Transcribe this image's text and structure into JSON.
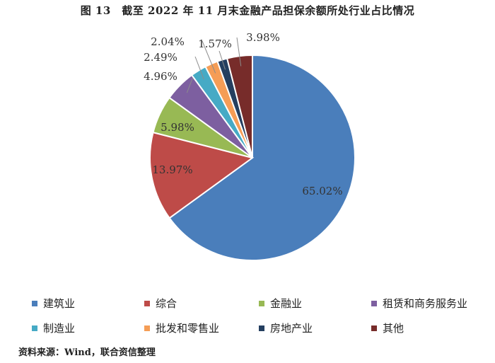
{
  "figure": {
    "title": "图 13　截至 2022 年 11 月末金融产品担保余额所处行业占比情况",
    "source": "资料来源：Wind，联合资信整理"
  },
  "chart_data": {
    "type": "pie",
    "title": "图 13　截至 2022 年 11 月末金融产品担保余额所处行业占比情况",
    "slices": [
      {
        "label": "建筑业",
        "value": 65.02,
        "value_label": "65.02%",
        "color": "#4A7EBB"
      },
      {
        "label": "综合",
        "value": 13.97,
        "value_label": "13.97%",
        "color": "#BE4B48"
      },
      {
        "label": "金融业",
        "value": 5.98,
        "value_label": "5.98%",
        "color": "#98B954"
      },
      {
        "label": "租赁和商务服务业",
        "value": 4.96,
        "value_label": "4.96%",
        "color": "#7D5FA0"
      },
      {
        "label": "制造业",
        "value": 2.49,
        "value_label": "2.49%",
        "color": "#46AAC5"
      },
      {
        "label": "批发和零售业",
        "value": 2.04,
        "value_label": "2.04%",
        "color": "#F59D56"
      },
      {
        "label": "房地产业",
        "value": 1.57,
        "value_label": "1.57%",
        "color": "#243F60"
      },
      {
        "label": "其他",
        "value": 3.98,
        "value_label": "3.98%",
        "color": "#772C2A"
      }
    ],
    "legend_position": "bottom"
  }
}
